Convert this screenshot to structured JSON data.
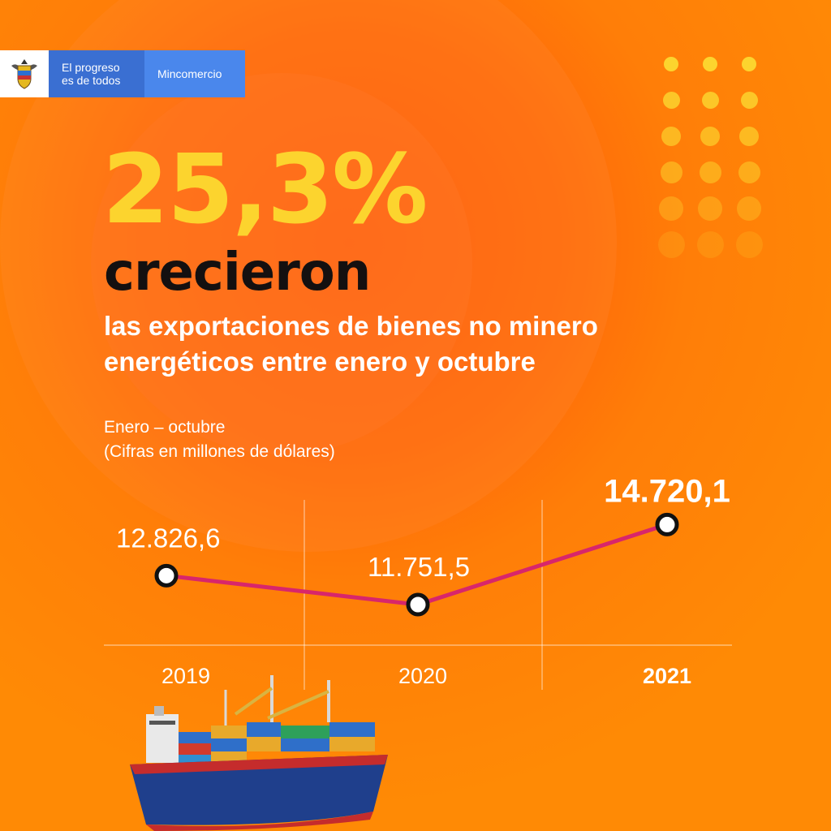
{
  "logo": {
    "slogan_line1": "El progreso",
    "slogan_line2": "es de todos",
    "ministry": "Mincomercio"
  },
  "headline": {
    "percent": "25,3%",
    "verb": "crecieron",
    "subtitle_line1": "las exportaciones de bienes no minero",
    "subtitle_line2": "energéticos entre enero y octubre"
  },
  "period": {
    "line1": "Enero – octubre",
    "line2": "(Cifras en millones de dólares)"
  },
  "colors": {
    "background": "#ff7e08",
    "accent_yellow": "#fcd42e",
    "line": "#d8266b"
  },
  "chart_data": {
    "type": "line",
    "categories": [
      "2019",
      "2020",
      "2021"
    ],
    "values": [
      12826.6,
      11751.5,
      14720.1
    ],
    "data_labels": [
      "12.826,6",
      "11.751,5",
      "14.720,1"
    ],
    "ylim": [
      11000,
      15500
    ],
    "grid": true,
    "highlight": "2021"
  }
}
